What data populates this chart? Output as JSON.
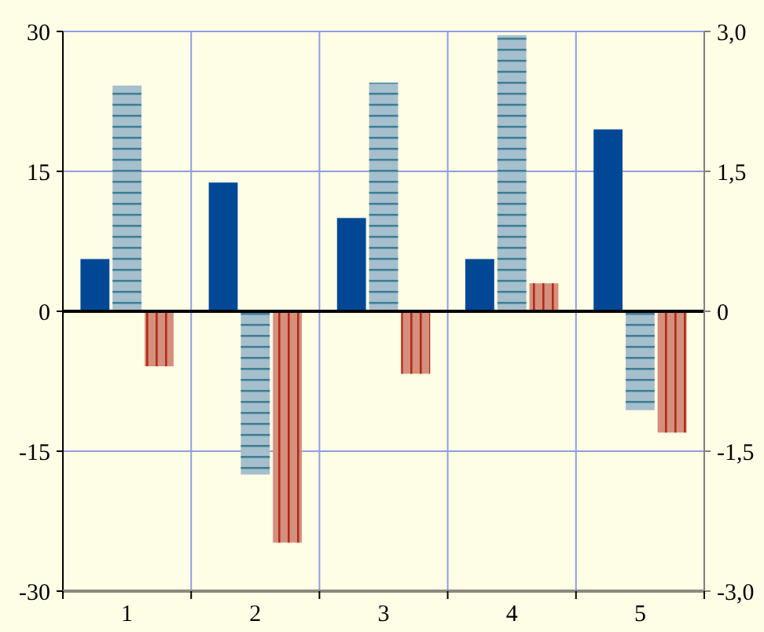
{
  "chart_data": {
    "type": "bar",
    "categories": [
      "1",
      "2",
      "3",
      "4",
      "5"
    ],
    "series": [
      {
        "color": "#004896",
        "values": [
          5.6,
          13.8,
          10.0,
          5.6,
          19.5
        ]
      },
      {
        "color": "#a6bfcc",
        "values": [
          24.2,
          -17.5,
          24.5,
          29.6,
          -10.6
        ]
      },
      {
        "color": "#d4907c",
        "values": [
          -5.9,
          -24.8,
          -6.7,
          3.0,
          -13.0
        ]
      }
    ],
    "ylim": [
      -30,
      30
    ],
    "yticks": [
      -30,
      -15,
      0,
      15,
      30
    ],
    "y2lim": [
      -3,
      3
    ],
    "y2ticks": [
      {
        "value": -3,
        "label": "-3,0"
      },
      {
        "value": -1.5,
        "label": "-1,5"
      },
      0,
      {
        "value": 1.5,
        "label": "1,5"
      },
      {
        "value": 3,
        "label": "3,0"
      }
    ],
    "grid": true
  }
}
